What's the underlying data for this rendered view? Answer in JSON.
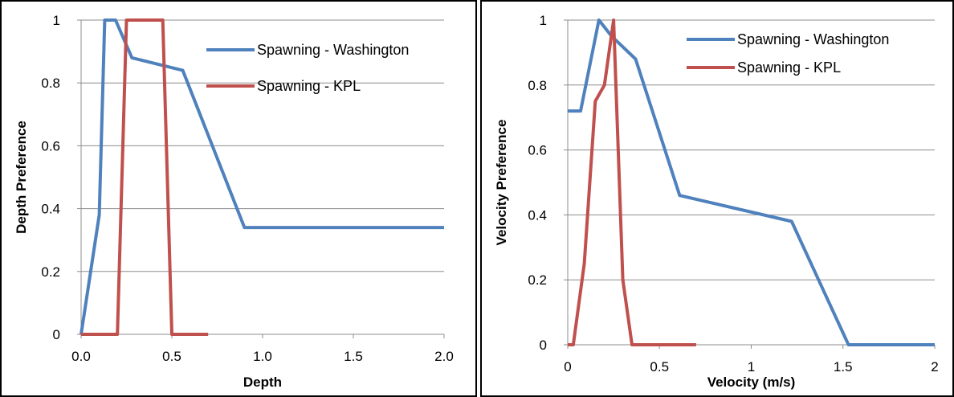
{
  "chart_data": [
    {
      "type": "line",
      "title": "",
      "xlabel": "Depth",
      "ylabel": "Depth Preference",
      "xlim": [
        0,
        2.0
      ],
      "ylim": [
        0,
        1
      ],
      "x_ticks": [
        "0.0",
        "0.5",
        "1.0",
        "1.5",
        "2.0"
      ],
      "y_ticks": [
        "0",
        "0.2",
        "0.4",
        "0.6",
        "0.8",
        "1"
      ],
      "grid": "horizontal",
      "legend_position": "top-right",
      "series": [
        {
          "name": "Spawning - Washington",
          "color": "#4f81bd",
          "x": [
            0,
            0.1,
            0.13,
            0.19,
            0.28,
            0.56,
            0.9,
            2.0
          ],
          "y": [
            0,
            0.38,
            1,
            1,
            0.88,
            0.84,
            0.34,
            0.34
          ]
        },
        {
          "name": "Spawning - KPL",
          "color": "#c0504d",
          "x": [
            0,
            0.2,
            0.25,
            0.45,
            0.5,
            0.7
          ],
          "y": [
            0,
            0,
            1,
            1,
            0,
            0
          ]
        }
      ]
    },
    {
      "type": "line",
      "title": "",
      "xlabel": "Velocity (m/s)",
      "ylabel": "Velocity Preference",
      "xlim": [
        0,
        2
      ],
      "ylim": [
        0,
        1
      ],
      "x_ticks": [
        "0",
        "0.5",
        "1",
        "1.5",
        "2"
      ],
      "y_ticks": [
        "0",
        "0.2",
        "0.4",
        "0.6",
        "0.8",
        "1"
      ],
      "grid": "horizontal",
      "legend_position": "top-right",
      "series": [
        {
          "name": "Spawning - Washington",
          "color": "#4f81bd",
          "x": [
            0,
            0.07,
            0.17,
            0.24,
            0.37,
            0.61,
            1.22,
            1.53,
            2.0
          ],
          "y": [
            0.72,
            0.72,
            1,
            0.95,
            0.88,
            0.46,
            0.38,
            0,
            0
          ]
        },
        {
          "name": "Spawning - KPL",
          "color": "#c0504d",
          "x": [
            0,
            0.03,
            0.09,
            0.15,
            0.2,
            0.25,
            0.3,
            0.35,
            0.7
          ],
          "y": [
            0,
            0,
            0.25,
            0.75,
            0.8,
            1,
            0.2,
            0,
            0
          ]
        }
      ]
    }
  ]
}
